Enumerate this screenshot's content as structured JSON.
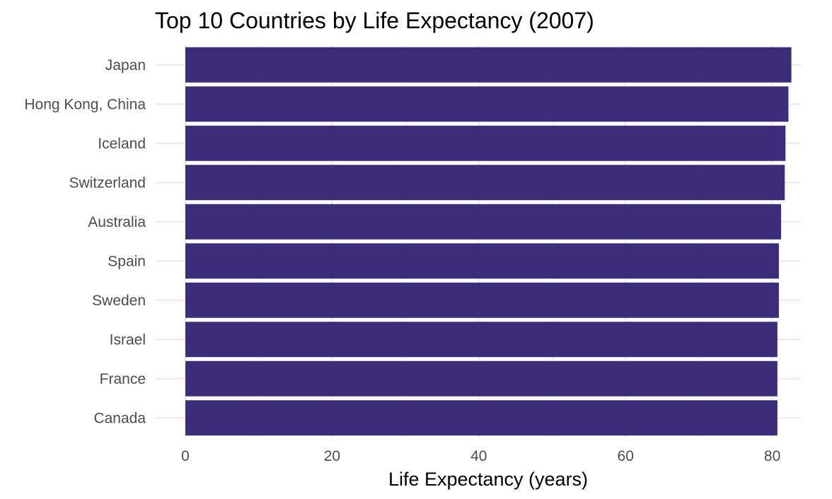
{
  "chart_data": {
    "type": "bar",
    "orientation": "horizontal",
    "title": "Top 10 Countries by Life Expectancy (2007)",
    "xlabel": "Life Expectancy (years)",
    "ylabel": "",
    "categories": [
      "Japan",
      "Hong Kong, China",
      "Iceland",
      "Switzerland",
      "Australia",
      "Spain",
      "Sweden",
      "Israel",
      "France",
      "Canada"
    ],
    "values": [
      82.6,
      82.2,
      81.8,
      81.7,
      81.2,
      80.9,
      80.9,
      80.7,
      80.7,
      80.7
    ],
    "xlim": [
      0,
      82.6
    ],
    "xticks": [
      0,
      20,
      40,
      60,
      80
    ],
    "grid": true,
    "legend": "none",
    "bar_color": "#3b2d78"
  }
}
